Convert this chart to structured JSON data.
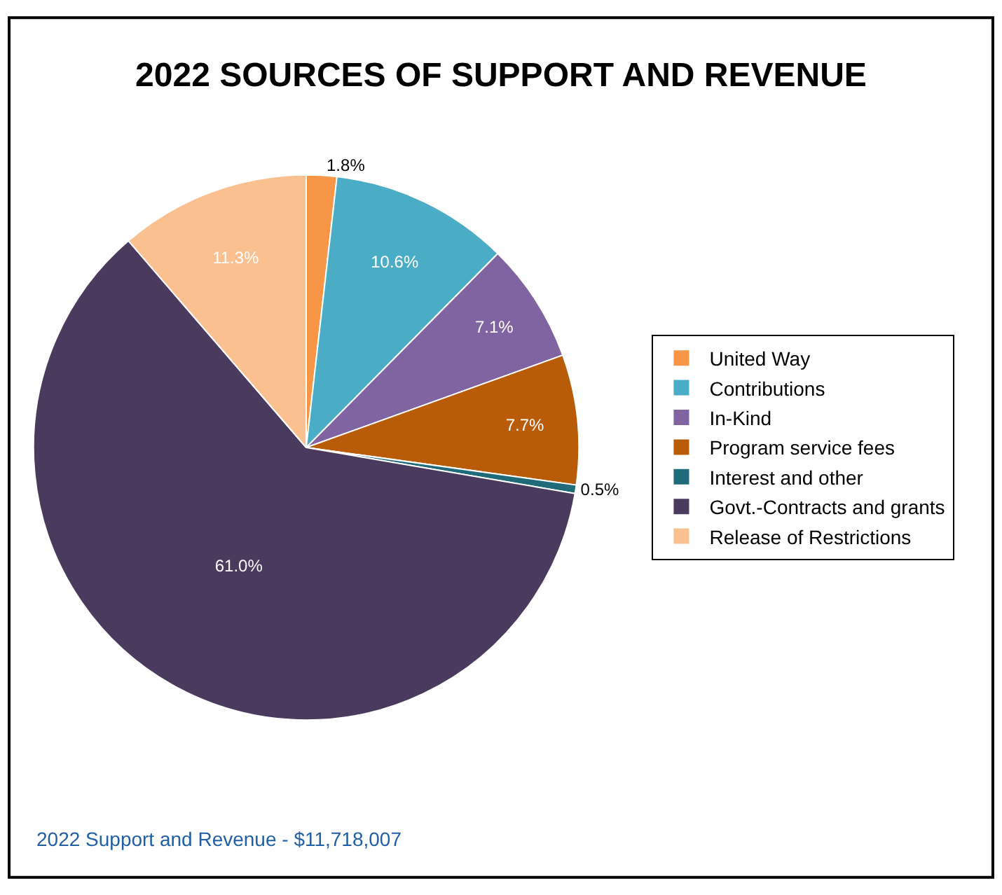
{
  "chart_data": {
    "type": "pie",
    "title": "2022 SOURCES OF SUPPORT AND REVENUE",
    "categories": [
      "United Way",
      "Contributions",
      "In-Kind",
      "Program service fees",
      "Interest and other",
      "Govt.-Contracts and grants",
      "Release of Restrictions"
    ],
    "values": [
      1.8,
      10.6,
      7.1,
      7.7,
      0.5,
      61.0,
      11.3
    ],
    "value_labels": [
      "1.8%",
      "10.6%",
      "7.1%",
      "7.7%",
      "0.5%",
      "61.0%",
      "11.3%"
    ],
    "colors": [
      "#f79646",
      "#4bacc6",
      "#8064a2",
      "#b85c0a",
      "#1f6b7a",
      "#4a3a5e",
      "#fac090"
    ],
    "legend": "right",
    "annotations": [
      "2022 Support and Revenue - $11,718,007"
    ]
  }
}
